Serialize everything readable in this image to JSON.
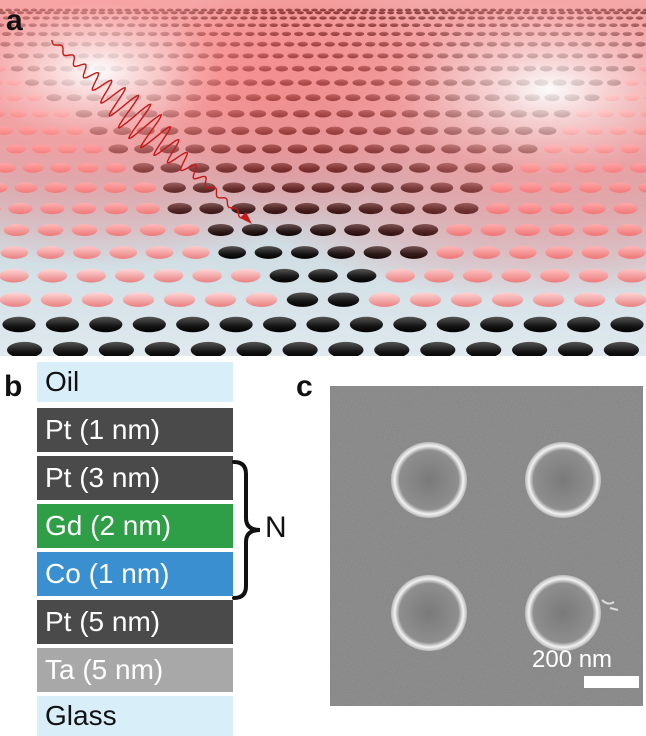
{
  "panels": {
    "a": "a",
    "b": "b",
    "c": "c"
  },
  "stack": {
    "layers": [
      {
        "label": "Oil",
        "color": "#d8eef8",
        "text_color": "#111111"
      },
      {
        "label": "Pt (1 nm)",
        "color": "#4a4a4a",
        "text_color": "#ffffff"
      },
      {
        "label": "Pt (3 nm)",
        "color": "#4a4a4a",
        "text_color": "#ffffff"
      },
      {
        "label": "Gd (2 nm)",
        "color": "#2e9e47",
        "text_color": "#ffffff"
      },
      {
        "label": "Co (1 nm)",
        "color": "#3a8fd0",
        "text_color": "#ffffff"
      },
      {
        "label": "Pt (5 nm)",
        "color": "#4a4a4a",
        "text_color": "#ffffff"
      },
      {
        "label": "Ta (5 nm)",
        "color": "#a8a8a8",
        "text_color": "#ffffff"
      },
      {
        "label": "Glass",
        "color": "#d8eef8",
        "text_color": "#111111"
      }
    ],
    "repeat_label": "N"
  },
  "sem": {
    "scale_label": "200 nm"
  },
  "colors": {
    "laser": "#d62020",
    "disk": "#1a1a1a",
    "surface": "#c9dbe3"
  }
}
